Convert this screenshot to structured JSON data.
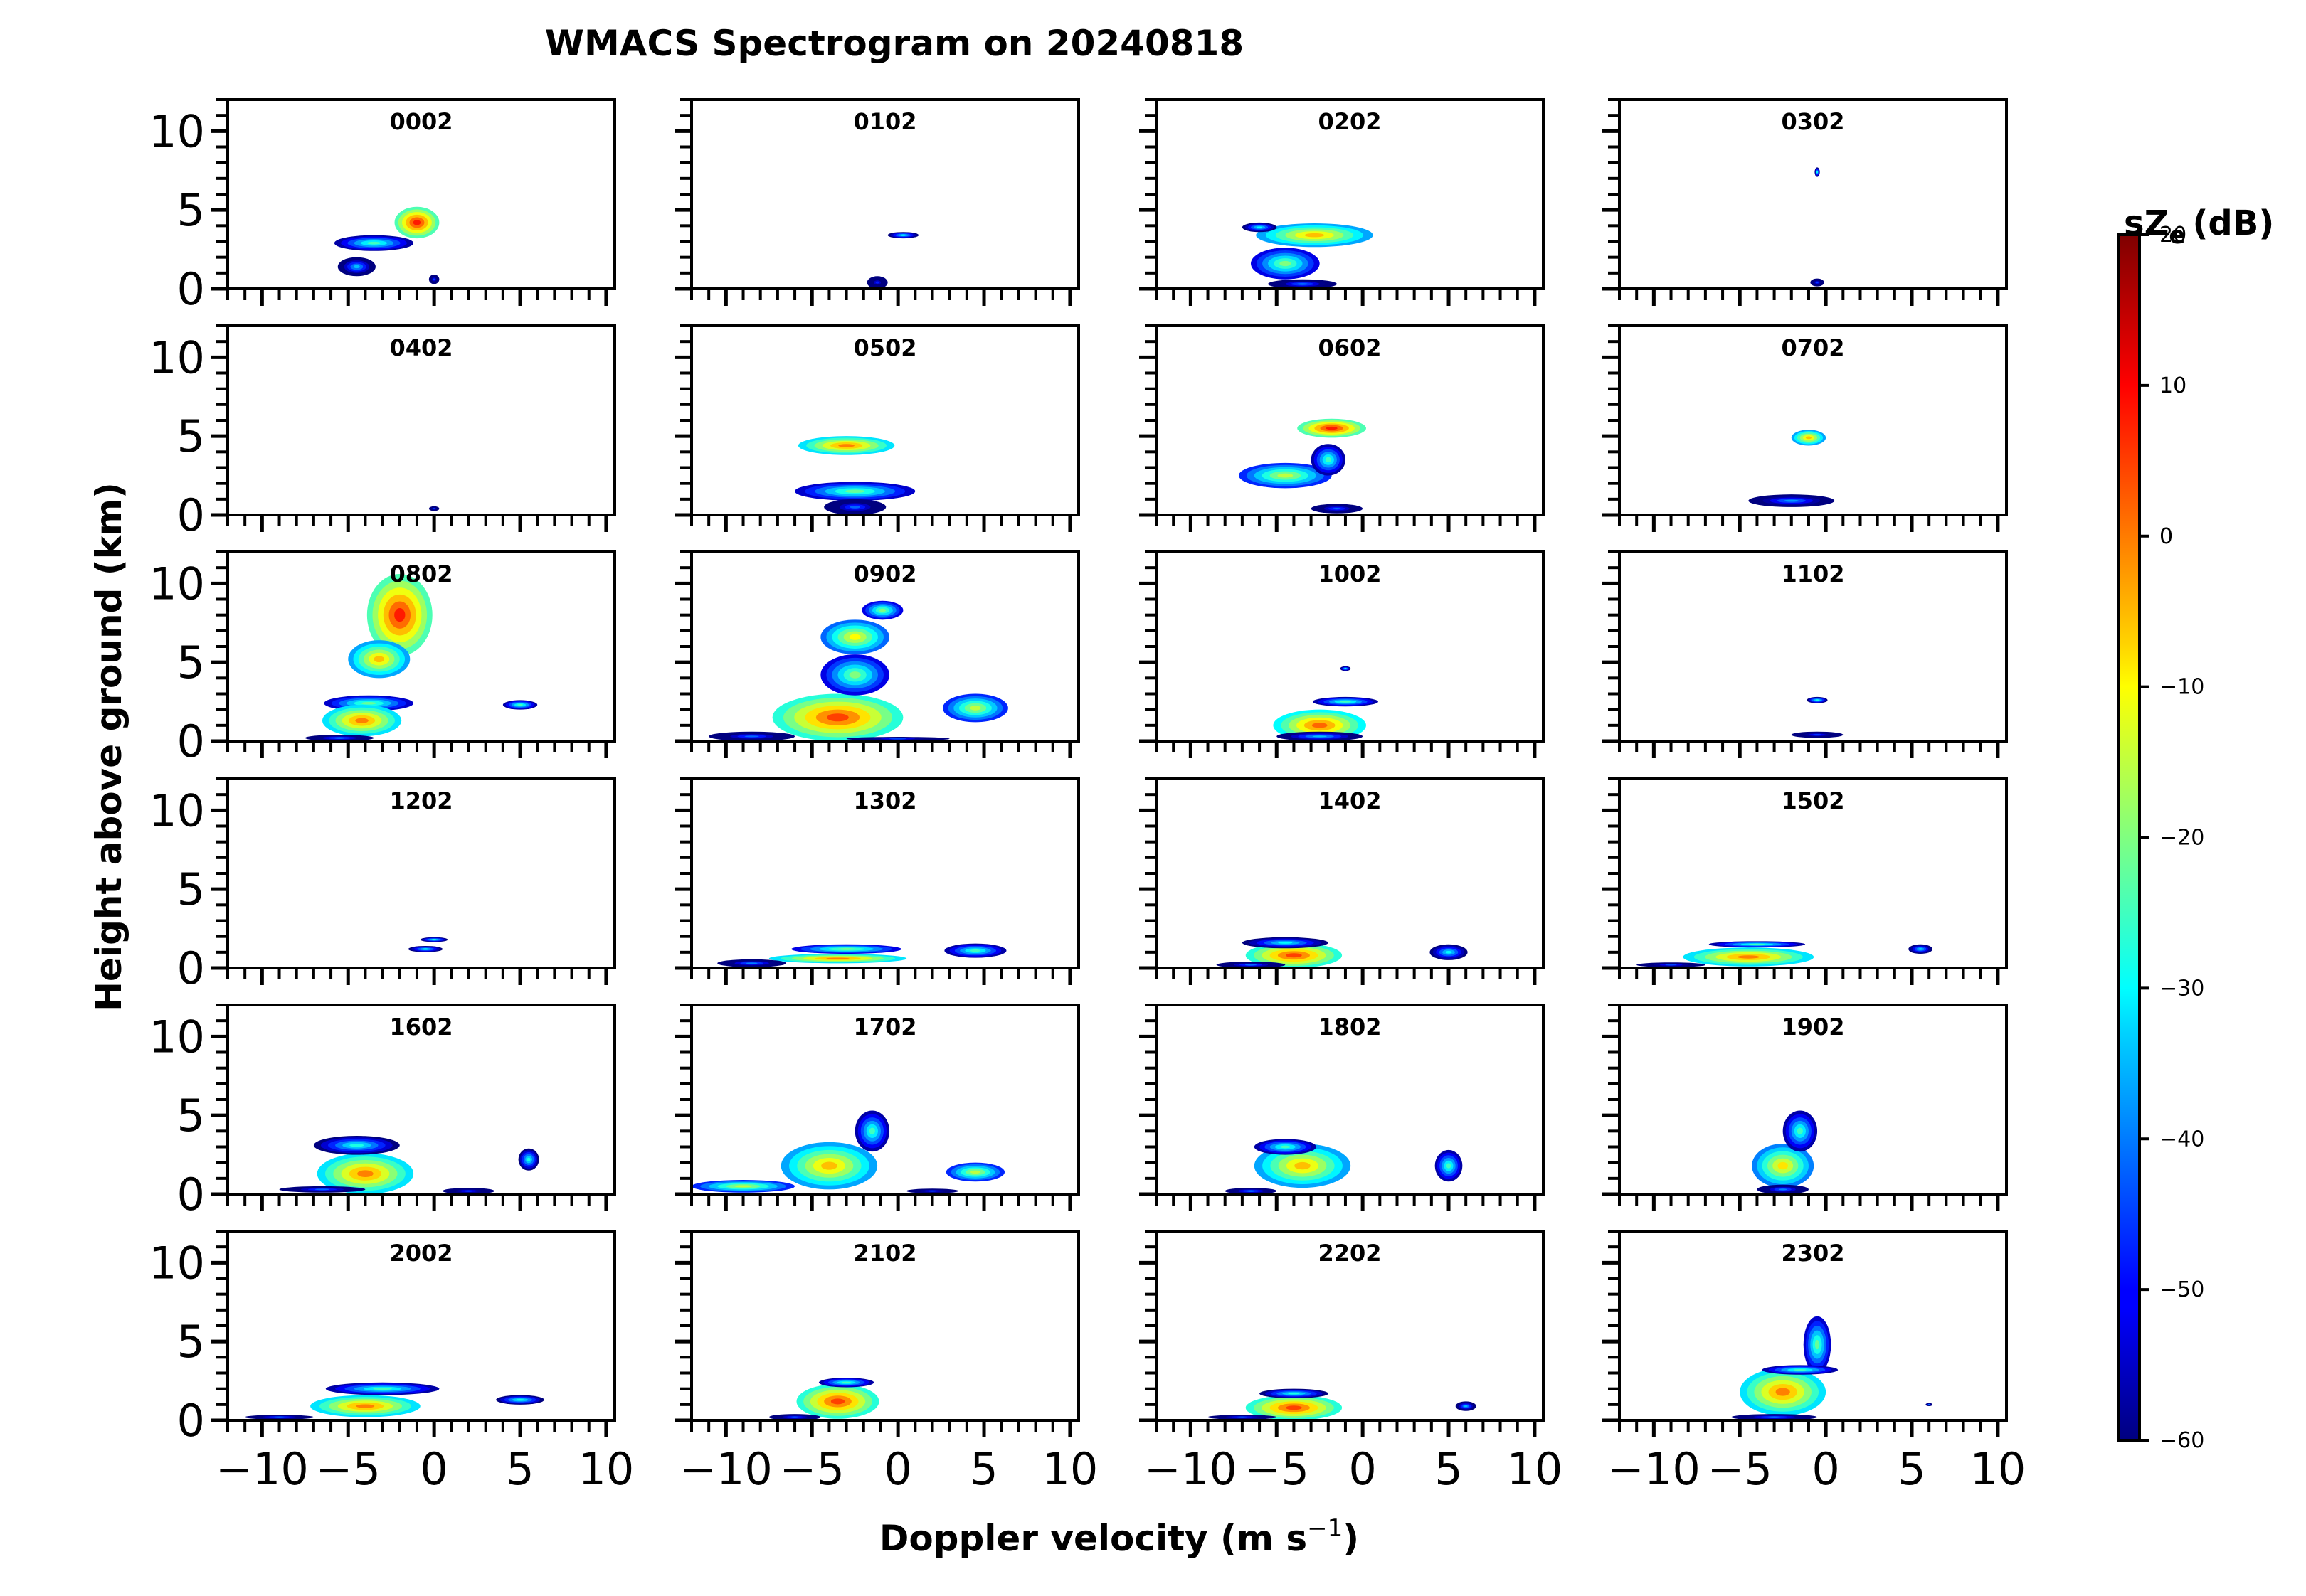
{
  "chart_data": {
    "type": "heatmap",
    "title": "WMACS Spectrogram on 20240818",
    "xlabel_main": "Doppler velocity (m s",
    "xlabel_sup": "−1",
    "xlabel_close": ")",
    "ylabel": "Height above ground (km)",
    "xlim": [
      -12,
      10.5
    ],
    "ylim": [
      0,
      12
    ],
    "xticks": [
      -10,
      -5,
      0,
      5,
      10
    ],
    "xtick_labels": [
      "−10",
      "−5",
      "0",
      "5",
      "10"
    ],
    "yticks": [
      0,
      5,
      10
    ],
    "ytick_labels": [
      "0",
      "5",
      "10"
    ],
    "colorbar": {
      "label": "sZ",
      "label_sub": "e",
      "label_units": "(dB)",
      "range": [
        -60,
        20
      ],
      "ticks": [
        20,
        10,
        0,
        -10,
        -20,
        -30,
        -40,
        -50,
        -60
      ],
      "tick_labels": [
        "20",
        "10",
        "0",
        "−10",
        "−20",
        "−30",
        "−40",
        "−50",
        "−60"
      ],
      "colormap": "jet"
    },
    "panels": [
      {
        "label": "0002",
        "blobs": [
          [
            -1,
            4.2,
            1.3,
            1,
            8
          ],
          [
            -3.5,
            2.9,
            2.3,
            0.5,
            -25
          ],
          [
            -4.5,
            1.4,
            1.1,
            0.6,
            -35
          ],
          [
            0,
            0.6,
            0.3,
            0.3,
            -45
          ]
        ]
      },
      {
        "label": "0102",
        "blobs": [
          [
            0.3,
            3.4,
            0.9,
            0.2,
            -30
          ],
          [
            -1.2,
            0.4,
            0.6,
            0.4,
            -48
          ]
        ]
      },
      {
        "label": "0202",
        "blobs": [
          [
            -2.8,
            3.4,
            3.4,
            0.75,
            -5
          ],
          [
            -4.5,
            1.6,
            2,
            1,
            -20
          ],
          [
            -3.5,
            0.3,
            2,
            0.3,
            -40
          ],
          [
            -6,
            3.9,
            1,
            0.3,
            -30
          ]
        ]
      },
      {
        "label": "0302",
        "blobs": [
          [
            -0.5,
            7.4,
            0.15,
            0.3,
            -30
          ],
          [
            -0.5,
            0.4,
            0.4,
            0.25,
            -45
          ]
        ]
      },
      {
        "label": "0402",
        "blobs": [
          [
            0,
            0.4,
            0.3,
            0.15,
            -45
          ]
        ]
      },
      {
        "label": "0502",
        "blobs": [
          [
            -3,
            4.4,
            2.8,
            0.6,
            0
          ],
          [
            -2.5,
            1.5,
            3.5,
            0.6,
            -22
          ],
          [
            -2.5,
            0.5,
            1.8,
            0.5,
            -42
          ]
        ]
      },
      {
        "label": "0602",
        "blobs": [
          [
            -1.8,
            5.5,
            2,
            0.6,
            8
          ],
          [
            -4.5,
            2.5,
            2.7,
            0.8,
            -15
          ],
          [
            -1.5,
            0.4,
            1.5,
            0.3,
            -42
          ],
          [
            -2,
            3.5,
            1,
            1,
            -25
          ]
        ]
      },
      {
        "label": "0702",
        "blobs": [
          [
            -1,
            4.9,
            1,
            0.5,
            -5
          ],
          [
            -2,
            0.9,
            2.5,
            0.4,
            -38
          ]
        ]
      },
      {
        "label": "0802",
        "blobs": [
          [
            -2,
            8,
            1.9,
            2.6,
            8
          ],
          [
            -3.2,
            5.2,
            1.8,
            1.2,
            -5
          ],
          [
            -3.8,
            2.4,
            2.6,
            0.5,
            -22
          ],
          [
            -4.2,
            1.3,
            2.3,
            1,
            0
          ],
          [
            -5.5,
            0.2,
            2,
            0.2,
            -40
          ],
          [
            5,
            2.3,
            1,
            0.3,
            -25
          ]
        ]
      },
      {
        "label": "0902",
        "blobs": [
          [
            -3.5,
            1.5,
            3.8,
            1.5,
            5
          ],
          [
            -2.5,
            4.2,
            2,
            1.3,
            -20
          ],
          [
            -2.5,
            6.6,
            2,
            1.1,
            -10
          ],
          [
            -0.9,
            8.3,
            1.2,
            0.6,
            -20
          ],
          [
            4.5,
            2.1,
            1.9,
            0.9,
            -15
          ],
          [
            -8.5,
            0.3,
            2.5,
            0.3,
            -42
          ],
          [
            0,
            0.15,
            3,
            0.12,
            -45
          ]
        ]
      },
      {
        "label": "1002",
        "blobs": [
          [
            -2.5,
            1,
            2.7,
            1,
            2
          ],
          [
            -1,
            2.5,
            1.9,
            0.3,
            -25
          ],
          [
            -2.5,
            0.3,
            2.5,
            0.3,
            -35
          ],
          [
            -1,
            4.6,
            0.3,
            0.15,
            -30
          ]
        ]
      },
      {
        "label": "1102",
        "blobs": [
          [
            -0.5,
            0.4,
            1.5,
            0.2,
            -45
          ],
          [
            -0.5,
            2.6,
            0.6,
            0.2,
            -28
          ]
        ]
      },
      {
        "label": "1202",
        "blobs": [
          [
            0,
            1.8,
            0.8,
            0.15,
            -28
          ],
          [
            -0.5,
            1.2,
            1,
            0.2,
            -30
          ]
        ]
      },
      {
        "label": "1302",
        "blobs": [
          [
            -3.5,
            0.6,
            4,
            0.3,
            0
          ],
          [
            -3,
            1.2,
            3.2,
            0.3,
            -20
          ],
          [
            4.5,
            1.1,
            1.8,
            0.45,
            -25
          ],
          [
            -8.5,
            0.3,
            2,
            0.25,
            -40
          ]
        ]
      },
      {
        "label": "1402",
        "blobs": [
          [
            -4,
            0.8,
            2.8,
            0.8,
            5
          ],
          [
            -4.5,
            1.6,
            2.5,
            0.35,
            -30
          ],
          [
            5,
            1,
            1.1,
            0.5,
            -30
          ],
          [
            -6.5,
            0.2,
            2,
            0.2,
            -42
          ]
        ]
      },
      {
        "label": "1502",
        "blobs": [
          [
            -4.5,
            0.7,
            3.8,
            0.6,
            0
          ],
          [
            -4,
            1.5,
            2.8,
            0.2,
            -25
          ],
          [
            5.5,
            1.2,
            0.7,
            0.3,
            -32
          ],
          [
            -9,
            0.2,
            2,
            0.15,
            -45
          ]
        ]
      },
      {
        "label": "1602",
        "blobs": [
          [
            -4,
            1.3,
            2.8,
            1.3,
            0
          ],
          [
            -4.5,
            3.1,
            2.5,
            0.6,
            -28
          ],
          [
            -6.5,
            0.3,
            2.5,
            0.2,
            -42
          ],
          [
            5.5,
            2.2,
            0.6,
            0.7,
            -28
          ],
          [
            2,
            0.2,
            1.5,
            0.2,
            -45
          ]
        ]
      },
      {
        "label": "1702",
        "blobs": [
          [
            -4,
            1.8,
            2.8,
            1.5,
            -5
          ],
          [
            -1.5,
            4,
            1,
            1.3,
            -25
          ],
          [
            4.5,
            1.4,
            1.7,
            0.6,
            -15
          ],
          [
            -9,
            0.5,
            3,
            0.4,
            -15
          ],
          [
            2,
            0.2,
            1.5,
            0.15,
            -45
          ]
        ]
      },
      {
        "label": "1802",
        "blobs": [
          [
            -3.5,
            1.8,
            2.8,
            1.4,
            -5
          ],
          [
            -4.5,
            3,
            1.8,
            0.5,
            -25
          ],
          [
            5,
            1.8,
            0.8,
            1,
            -25
          ],
          [
            -6.5,
            0.2,
            1.5,
            0.2,
            -40
          ]
        ]
      },
      {
        "label": "1902",
        "blobs": [
          [
            -2.5,
            1.8,
            1.8,
            1.4,
            -8
          ],
          [
            -1.5,
            4,
            1,
            1.3,
            -25
          ],
          [
            -2.5,
            0.3,
            1.5,
            0.3,
            -40
          ]
        ]
      },
      {
        "label": "2002",
        "blobs": [
          [
            -4,
            0.9,
            3.2,
            0.7,
            0
          ],
          [
            -3,
            2,
            3.3,
            0.4,
            -25
          ],
          [
            5,
            1.3,
            1.4,
            0.3,
            -28
          ],
          [
            -9,
            0.2,
            2,
            0.15,
            -40
          ]
        ]
      },
      {
        "label": "2102",
        "blobs": [
          [
            -3.5,
            1.2,
            2.4,
            1.1,
            5
          ],
          [
            -3,
            2.4,
            1.6,
            0.3,
            -25
          ],
          [
            -6,
            0.2,
            1.5,
            0.2,
            -42
          ]
        ]
      },
      {
        "label": "2202",
        "blobs": [
          [
            -4,
            0.8,
            2.8,
            0.8,
            5
          ],
          [
            -4,
            1.7,
            2,
            0.3,
            -28
          ],
          [
            6,
            0.9,
            0.6,
            0.3,
            -35
          ],
          [
            -7,
            0.2,
            2,
            0.15,
            -42
          ]
        ]
      },
      {
        "label": "2302",
        "blobs": [
          [
            -2.5,
            1.8,
            2.5,
            1.5,
            0
          ],
          [
            -0.5,
            4.8,
            0.8,
            1.8,
            -22
          ],
          [
            -1.5,
            3.2,
            2.2,
            0.3,
            -25
          ],
          [
            -3,
            0.2,
            2.5,
            0.2,
            -40
          ],
          [
            6,
            1,
            0.2,
            0.1,
            -40
          ]
        ]
      }
    ]
  }
}
